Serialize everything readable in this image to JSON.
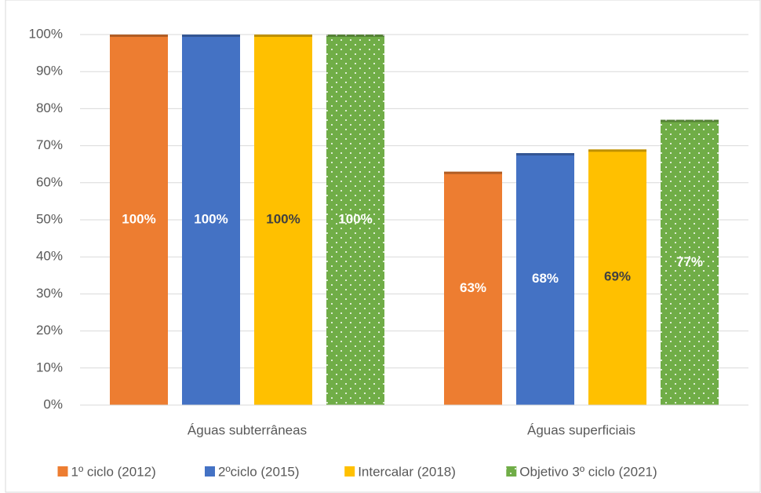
{
  "chart_data": {
    "type": "bar",
    "categories": [
      "Águas subterrâneas",
      "Águas superficiais"
    ],
    "series": [
      {
        "name": "1º ciclo (2012)",
        "color": "#ed7d31",
        "values": [
          100,
          63
        ],
        "value_labels": [
          "100%",
          "63%"
        ]
      },
      {
        "name": "2ºciclo (2015)",
        "color": "#4472c4",
        "values": [
          100,
          68
        ],
        "value_labels": [
          "100%",
          "68%"
        ]
      },
      {
        "name": "Intercalar (2018)",
        "color": "#ffc000",
        "values": [
          100,
          69
        ],
        "value_labels": [
          "100%",
          "69%"
        ]
      },
      {
        "name": "Objetivo 3º ciclo (2021)",
        "color": "#70ad47",
        "pattern": "dots",
        "values": [
          100,
          77
        ],
        "value_labels": [
          "100%",
          "77%"
        ]
      }
    ],
    "ylim": [
      0,
      100
    ],
    "yticks": [
      {
        "value": 0,
        "label": "0%"
      },
      {
        "value": 10,
        "label": "10%"
      },
      {
        "value": 20,
        "label": "20%"
      },
      {
        "value": 30,
        "label": "30%"
      },
      {
        "value": 40,
        "label": "40%"
      },
      {
        "value": 50,
        "label": "50%"
      },
      {
        "value": 60,
        "label": "60%"
      },
      {
        "value": 70,
        "label": "70%"
      },
      {
        "value": 80,
        "label": "80%"
      },
      {
        "value": 90,
        "label": "90%"
      },
      {
        "value": 100,
        "label": "100%"
      }
    ],
    "grid": true,
    "legend": "bottom"
  }
}
